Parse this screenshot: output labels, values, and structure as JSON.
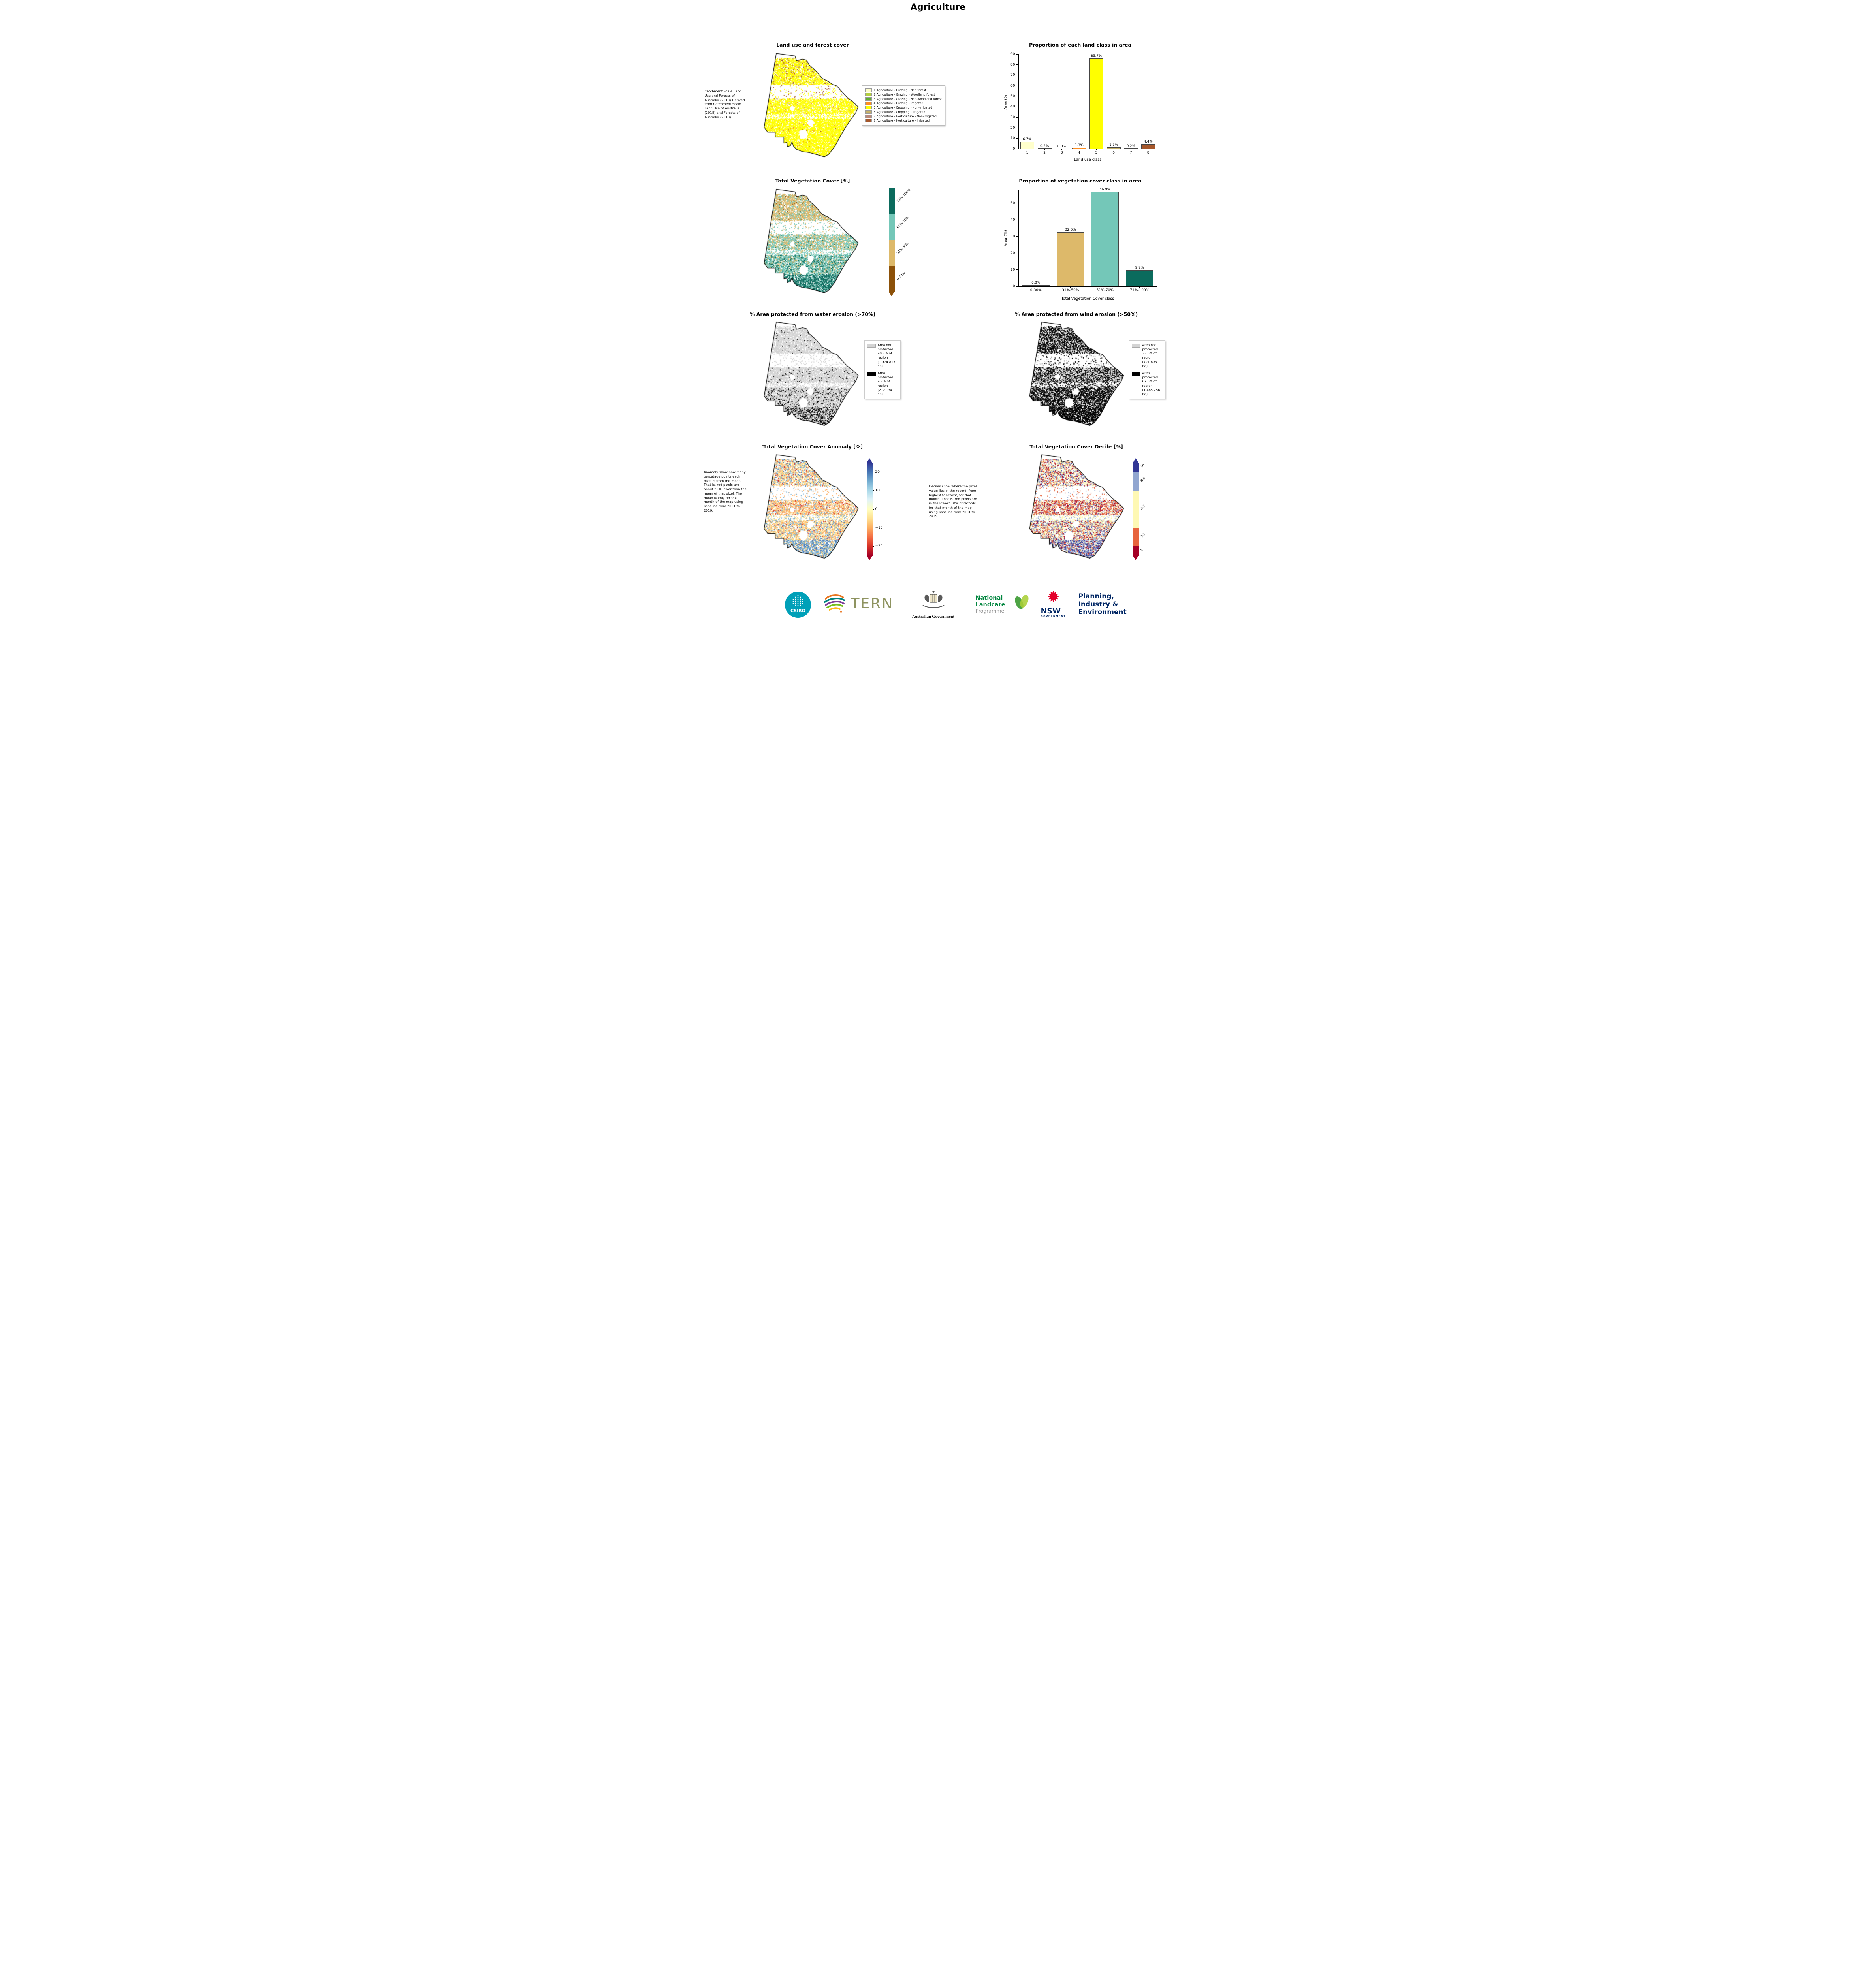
{
  "page": {
    "title": "Agriculture"
  },
  "land_use": {
    "title": "Land use and forest cover",
    "note": "Catchment Scale Land Use and Forests of Australia (2018) Derived from Catchment Scale Land Use of Australia (2018) and Forests of Australia (2018)",
    "legend": [
      {
        "label": "1 Agriculture - Grazing - Non forest",
        "color": "#ffffcc"
      },
      {
        "label": "2 Agriculture - Grazing - Woodland forest",
        "color": "#b4cf3f"
      },
      {
        "label": "3 Agriculture - Grazing - Non-woodland forest",
        "color": "#5fae2f"
      },
      {
        "label": "4 Agriculture - Grazing - Irrigated",
        "color": "#fd8d21"
      },
      {
        "label": "5 Agriculture - Cropping - Non-irrigated",
        "color": "#ffff00"
      },
      {
        "label": "6 Agriculture - Cropping - Irrigated",
        "color": "#c7b269"
      },
      {
        "label": "7 Agriculture - Horticulture - Non-irrigated",
        "color": "#b98a7c"
      },
      {
        "label": "8 Agriculture - Horticulture - Irrigated",
        "color": "#a6572b"
      }
    ]
  },
  "veg_cover": {
    "title": "Total Vegetation Cover [%]",
    "colorbar": [
      {
        "label": "71%-100%",
        "color": "#0b6b5d"
      },
      {
        "label": "51%-70%",
        "color": "#74c7b8"
      },
      {
        "label": "31%-50%",
        "color": "#ddb96a"
      },
      {
        "label": "0-30%",
        "color": "#8c5109"
      }
    ]
  },
  "water_erosion": {
    "title": "% Area protected from water erosion (>70%)",
    "legend": [
      {
        "label": "Area not protected 90.3% of region (1,974,815 ha)",
        "color": "#d4d4d4"
      },
      {
        "label": "Area protected 9.7% of region (212,134 ha)",
        "color": "#000000"
      }
    ]
  },
  "wind_erosion": {
    "title": "% Area protected from wind erosion (>50%)",
    "legend": [
      {
        "label": "Area not protected 33.0% of region (721,693 ha)",
        "color": "#d4d4d4"
      },
      {
        "label": "Area protected 67.0% of region (1,465,256 ha)",
        "color": "#000000"
      }
    ]
  },
  "anomaly": {
    "title": "Total Vegetation Cover Anomaly [%]",
    "note": "Anomaly show how many percetage points each pixel is from the mean. That is, red pixels are about 20% lower than the mean of that pixel. The mean is only for the month of the map using baseline from 2001 to 2019.",
    "cbar_range": [
      -25,
      25
    ],
    "cbar_ticks": [
      {
        "label": "20",
        "value": 20
      },
      {
        "label": "10",
        "value": 10
      },
      {
        "label": "0",
        "value": 0
      },
      {
        "label": "−10",
        "value": -10
      },
      {
        "label": "−20",
        "value": -20
      }
    ],
    "cbar_colors": [
      "#a50026",
      "#d73027",
      "#f46d43",
      "#fdae61",
      "#fee090",
      "#ffffbf",
      "#e0f3f8",
      "#abd9e9",
      "#74add1",
      "#4575b4",
      "#313695"
    ]
  },
  "decile": {
    "title": "Total Vegetation Cover Decile [%]",
    "note": "Deciles show where the pixel value lies in the record, from highest to lowest, for that month. That is, red pixels are in the lowest 10% of records for that month of the map using baseline from 2001 to 2019.",
    "colorbar": [
      {
        "label": "10",
        "color": "#313695",
        "fraction": 0.1
      },
      {
        "label": "8-9",
        "color": "#91a6d0",
        "fraction": 0.2
      },
      {
        "label": "4-7",
        "color": "#fef8b4",
        "fraction": 0.4
      },
      {
        "label": "2-3",
        "color": "#e7643d",
        "fraction": 0.2
      },
      {
        "label": "1",
        "color": "#a50026",
        "fraction": 0.1
      }
    ]
  },
  "chart_data": [
    {
      "type": "bar",
      "title": "Proportion of each land class in area",
      "xlabel": "Land use class",
      "ylabel": "Area (%)",
      "categories": [
        "1",
        "2",
        "3",
        "4",
        "5",
        "6",
        "7",
        "8"
      ],
      "values": [
        6.7,
        0.2,
        0.0,
        1.3,
        85.7,
        1.5,
        0.2,
        4.4
      ],
      "bar_labels": [
        "6.7%",
        "0.2%",
        "0.0%",
        "1.3%",
        "85.7%",
        "1.5%",
        "0.2%",
        "4.4%"
      ],
      "colors": [
        "#ffffcc",
        "#b4cf3f",
        "#5fae2f",
        "#fd8d21",
        "#ffff00",
        "#c7b269",
        "#b98a7c",
        "#a6572b"
      ],
      "ylim": [
        0,
        90
      ],
      "yticks": [
        0,
        10,
        20,
        30,
        40,
        50,
        60,
        70,
        80,
        90
      ],
      "legend_position": "none",
      "grid": false
    },
    {
      "type": "bar",
      "title": "Proportion of vegetation cover class in area",
      "xlabel": "Total Vegetation Cover class",
      "ylabel": "Area (%)",
      "categories": [
        "0-30%",
        "31%-50%",
        "51%-70%",
        "71%-100%"
      ],
      "values": [
        0.8,
        32.6,
        56.9,
        9.7
      ],
      "bar_labels": [
        "0.8%",
        "32.6%",
        "56.9%",
        "9.7%"
      ],
      "colors": [
        "#8c5109",
        "#ddb96a",
        "#74c7b8",
        "#0b6b5d"
      ],
      "ylim": [
        0,
        58
      ],
      "yticks": [
        0,
        10,
        20,
        30,
        40,
        50
      ],
      "legend_position": "none",
      "grid": false
    }
  ],
  "footer": {
    "csiro": "CSIRO",
    "tern": "TERN",
    "ausgov": "Australian Government",
    "landcare": [
      "National",
      "Landcare",
      "Programme"
    ],
    "nsw": "NSW",
    "nsw_sub": "GOVERNMENT",
    "dpie": [
      "Planning,",
      "Industry &",
      "Environment"
    ],
    "colors": {
      "csiro_teal": "#00a0b8",
      "nsw_red": "#e4002b",
      "navy": "#002664",
      "landcare_green": "#00853e",
      "tern_text": "#8e9360"
    }
  }
}
